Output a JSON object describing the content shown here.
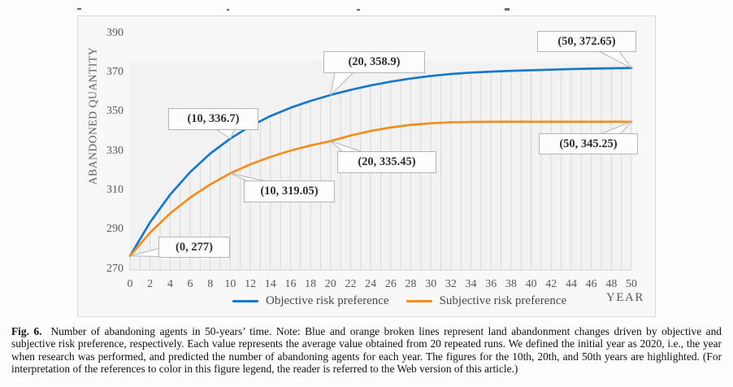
{
  "figure": {
    "caption_label": "Fig. 6.",
    "caption_text": "Number of abandoning agents in 50-years’ time. Note: Blue and orange broken lines represent land abandonment changes driven by objective and subjective risk preference, respectively. Each value represents the average value obtained from 20 repeated runs. We defined the initial year as 2020, i.e., the year when research was performed, and predicted the number of abandoning agents for each year. The figures for the 10th, 20th, and 50th years are highlighted. (For interpretation of the references to color in this figure legend, the reader is referred to the Web version of this article.)"
  },
  "chart_data": {
    "type": "line",
    "title": "",
    "xlabel": "YEAR",
    "ylabel": "ABANDONED QUANTITY",
    "xlim": [
      0,
      50
    ],
    "ylim": [
      270,
      390
    ],
    "xticks": [
      0,
      2,
      4,
      6,
      8,
      10,
      12,
      14,
      16,
      18,
      20,
      22,
      24,
      26,
      28,
      30,
      32,
      34,
      36,
      38,
      40,
      42,
      44,
      46,
      48,
      50
    ],
    "yticks": [
      270,
      290,
      310,
      330,
      350,
      370,
      390
    ],
    "grid": "vertical drop lines at every year from x-axis up to the blue series",
    "legend_position": "bottom",
    "x": [
      0,
      2,
      4,
      6,
      8,
      10,
      12,
      14,
      16,
      18,
      20,
      22,
      24,
      26,
      28,
      30,
      32,
      34,
      36,
      38,
      40,
      42,
      44,
      46,
      48,
      50
    ],
    "series": [
      {
        "name": "Objective risk preference",
        "color": "#1878c8",
        "values": [
          277,
          294.1,
          308.2,
          319.7,
          329.1,
          336.7,
          343.0,
          348.2,
          352.4,
          355.9,
          358.9,
          361.5,
          363.8,
          365.7,
          367.3,
          368.6,
          369.6,
          370.3,
          370.8,
          371.2,
          371.5,
          371.8,
          372.1,
          372.35,
          372.5,
          372.65
        ]
      },
      {
        "name": "Subjective risk preference",
        "color": "#f08e20",
        "values": [
          277,
          288.8,
          298.6,
          306.7,
          313.4,
          319.05,
          323.6,
          327.4,
          330.6,
          333.2,
          335.45,
          338.3,
          340.6,
          342.4,
          343.7,
          344.5,
          345.0,
          345.2,
          345.3,
          345.3,
          345.3,
          345.3,
          345.3,
          345.3,
          345.3,
          345.25
        ]
      }
    ],
    "annotations": [
      {
        "label": "(0, 277)",
        "x": 0,
        "y": 277,
        "series": "both"
      },
      {
        "label": "(10, 336.7)",
        "x": 10,
        "y": 336.7,
        "series": "Objective risk preference"
      },
      {
        "label": "(20, 358.9)",
        "x": 20,
        "y": 358.9,
        "series": "Objective risk preference"
      },
      {
        "label": "(50, 372.65)",
        "x": 50,
        "y": 372.65,
        "series": "Objective risk preference"
      },
      {
        "label": "(10, 319.05)",
        "x": 10,
        "y": 319.05,
        "series": "Subjective risk preference"
      },
      {
        "label": "(20, 335.45)",
        "x": 20,
        "y": 335.45,
        "series": "Subjective risk preference"
      },
      {
        "label": "(50, 345.25)",
        "x": 50,
        "y": 345.25,
        "series": "Subjective risk preference"
      }
    ],
    "colors": {
      "plot_background": "#f2f2f2",
      "frame_background": "#f8f8f8",
      "drop_line": "#d8d8d8",
      "tick_text": "#595959"
    }
  }
}
